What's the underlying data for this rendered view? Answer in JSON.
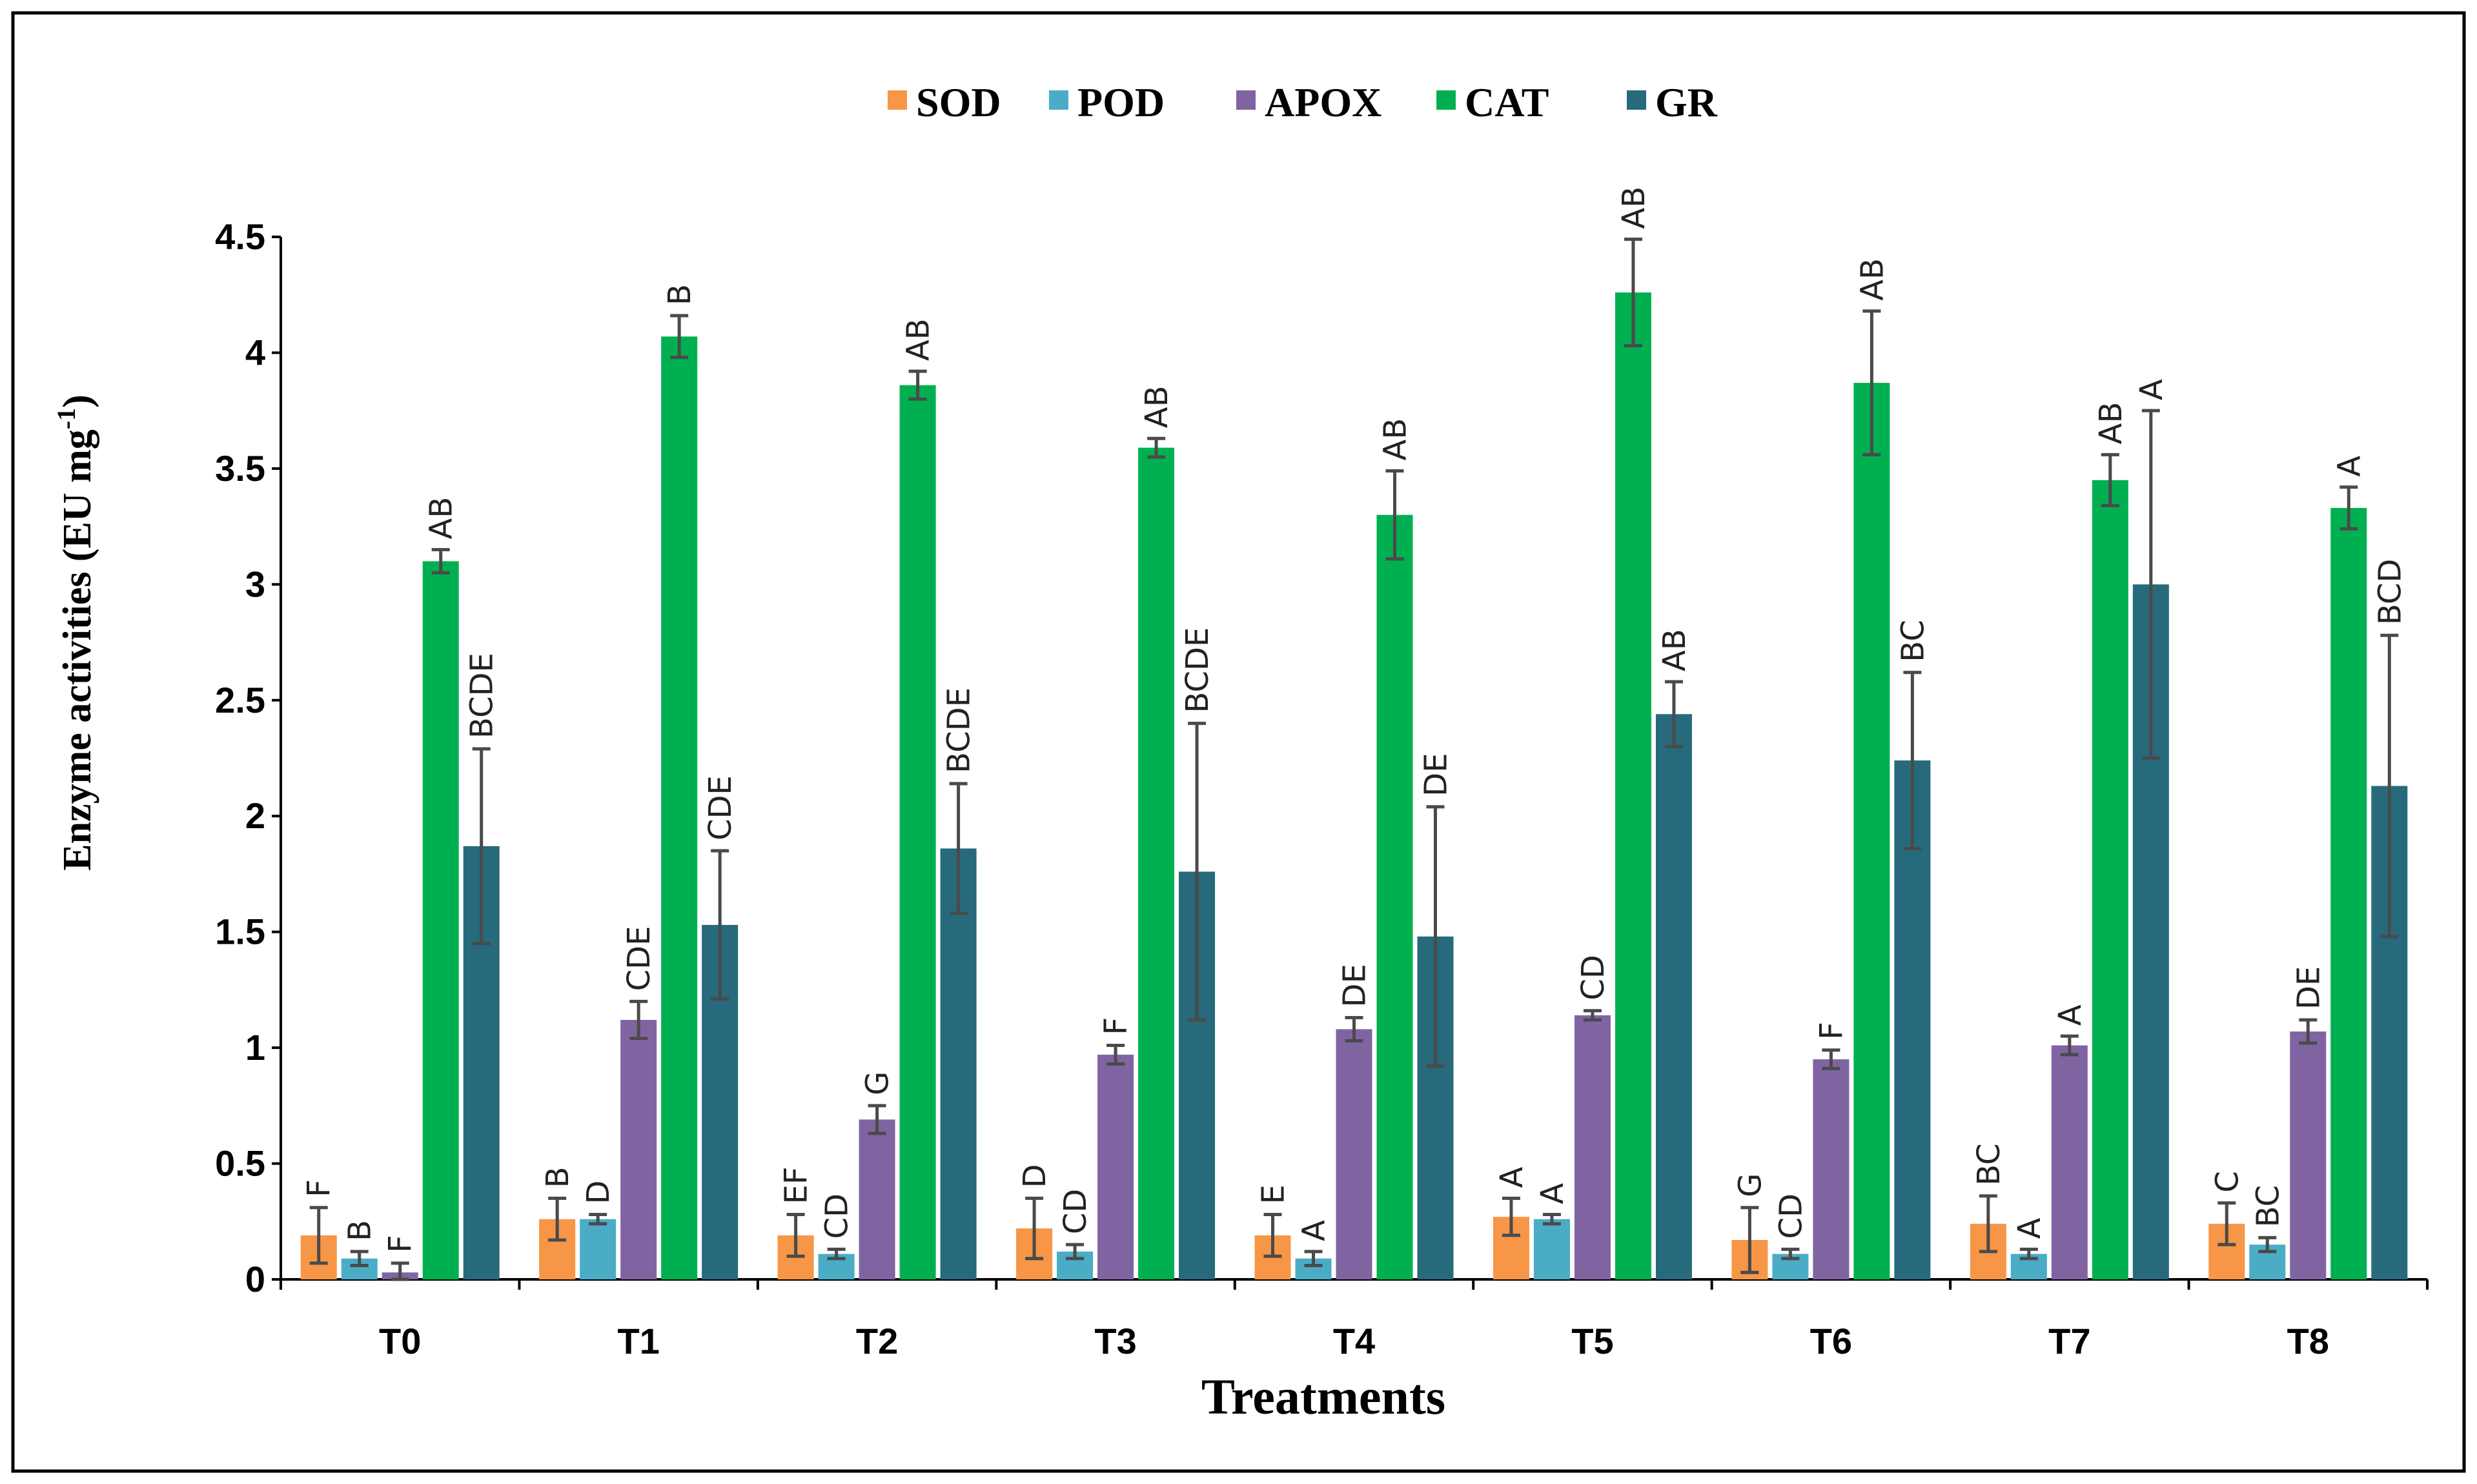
{
  "chart_data": {
    "type": "bar",
    "xlabel": "Treatments",
    "ylabel": "Enzyme activities (EU mg",
    "ylabel_sup": "-1",
    "ylabel_close": ")",
    "ylim": [
      0,
      4.5
    ],
    "yticks": [
      0,
      0.5,
      1,
      1.5,
      2,
      2.5,
      3,
      3.5,
      4,
      4.5
    ],
    "ytick_labels": [
      "0",
      "0.5",
      "1",
      "1.5",
      "2",
      "2.5",
      "3",
      "3.5",
      "4",
      "4.5"
    ],
    "grid": false,
    "legend_position": "top-center",
    "categories": [
      "T0",
      "T1",
      "T2",
      "T3",
      "T4",
      "T5",
      "T6",
      "T7",
      "T8"
    ],
    "series": [
      {
        "name": "SOD",
        "color": "#F79646",
        "values": [
          0.19,
          0.26,
          0.19,
          0.22,
          0.19,
          0.27,
          0.17,
          0.24,
          0.24
        ],
        "errors": [
          0.12,
          0.09,
          0.09,
          0.13,
          0.09,
          0.08,
          0.14,
          0.12,
          0.09
        ],
        "letters": [
          "F",
          "B",
          "EF",
          "D",
          "E",
          "A",
          "G",
          "BC",
          "C"
        ]
      },
      {
        "name": "POD",
        "color": "#4BACC6",
        "values": [
          0.09,
          0.26,
          0.11,
          0.12,
          0.09,
          0.26,
          0.11,
          0.11,
          0.15
        ],
        "errors": [
          0.03,
          0.02,
          0.02,
          0.03,
          0.03,
          0.02,
          0.02,
          0.02,
          0.03
        ],
        "letters": [
          "B",
          "D",
          "CD",
          "CD",
          "A",
          "A",
          "CD",
          "A",
          "BC"
        ]
      },
      {
        "name": "APOX",
        "color": "#8064A2",
        "values": [
          0.03,
          1.12,
          0.69,
          0.97,
          1.08,
          1.14,
          0.95,
          1.01,
          1.07
        ],
        "errors": [
          0.04,
          0.08,
          0.06,
          0.04,
          0.05,
          0.02,
          0.04,
          0.04,
          0.05
        ],
        "letters": [
          "F",
          "CDE",
          "G",
          "F",
          "DE",
          "CD",
          "F",
          "A",
          "DE"
        ]
      },
      {
        "name": "CAT",
        "color": "#00B050",
        "values": [
          3.1,
          4.07,
          3.86,
          3.59,
          3.3,
          4.26,
          3.87,
          3.45,
          3.33
        ],
        "errors": [
          0.05,
          0.09,
          0.06,
          0.04,
          0.19,
          0.23,
          0.31,
          0.11,
          0.09
        ],
        "letters": [
          "AB",
          "B",
          "AB",
          "AB",
          "AB",
          "AB",
          "AB",
          "AB",
          "A"
        ]
      },
      {
        "name": "GR",
        "color": "#266A7C",
        "values": [
          1.87,
          1.53,
          1.86,
          1.76,
          1.48,
          2.44,
          2.24,
          3.0,
          2.13
        ],
        "errors": [
          0.42,
          0.32,
          0.28,
          0.64,
          0.56,
          0.14,
          0.38,
          0.75,
          0.65
        ],
        "letters": [
          "BCDE",
          "CDE",
          "BCDE",
          "BCDE",
          "DE",
          "AB",
          "BC",
          "A",
          "BCD"
        ]
      }
    ]
  }
}
